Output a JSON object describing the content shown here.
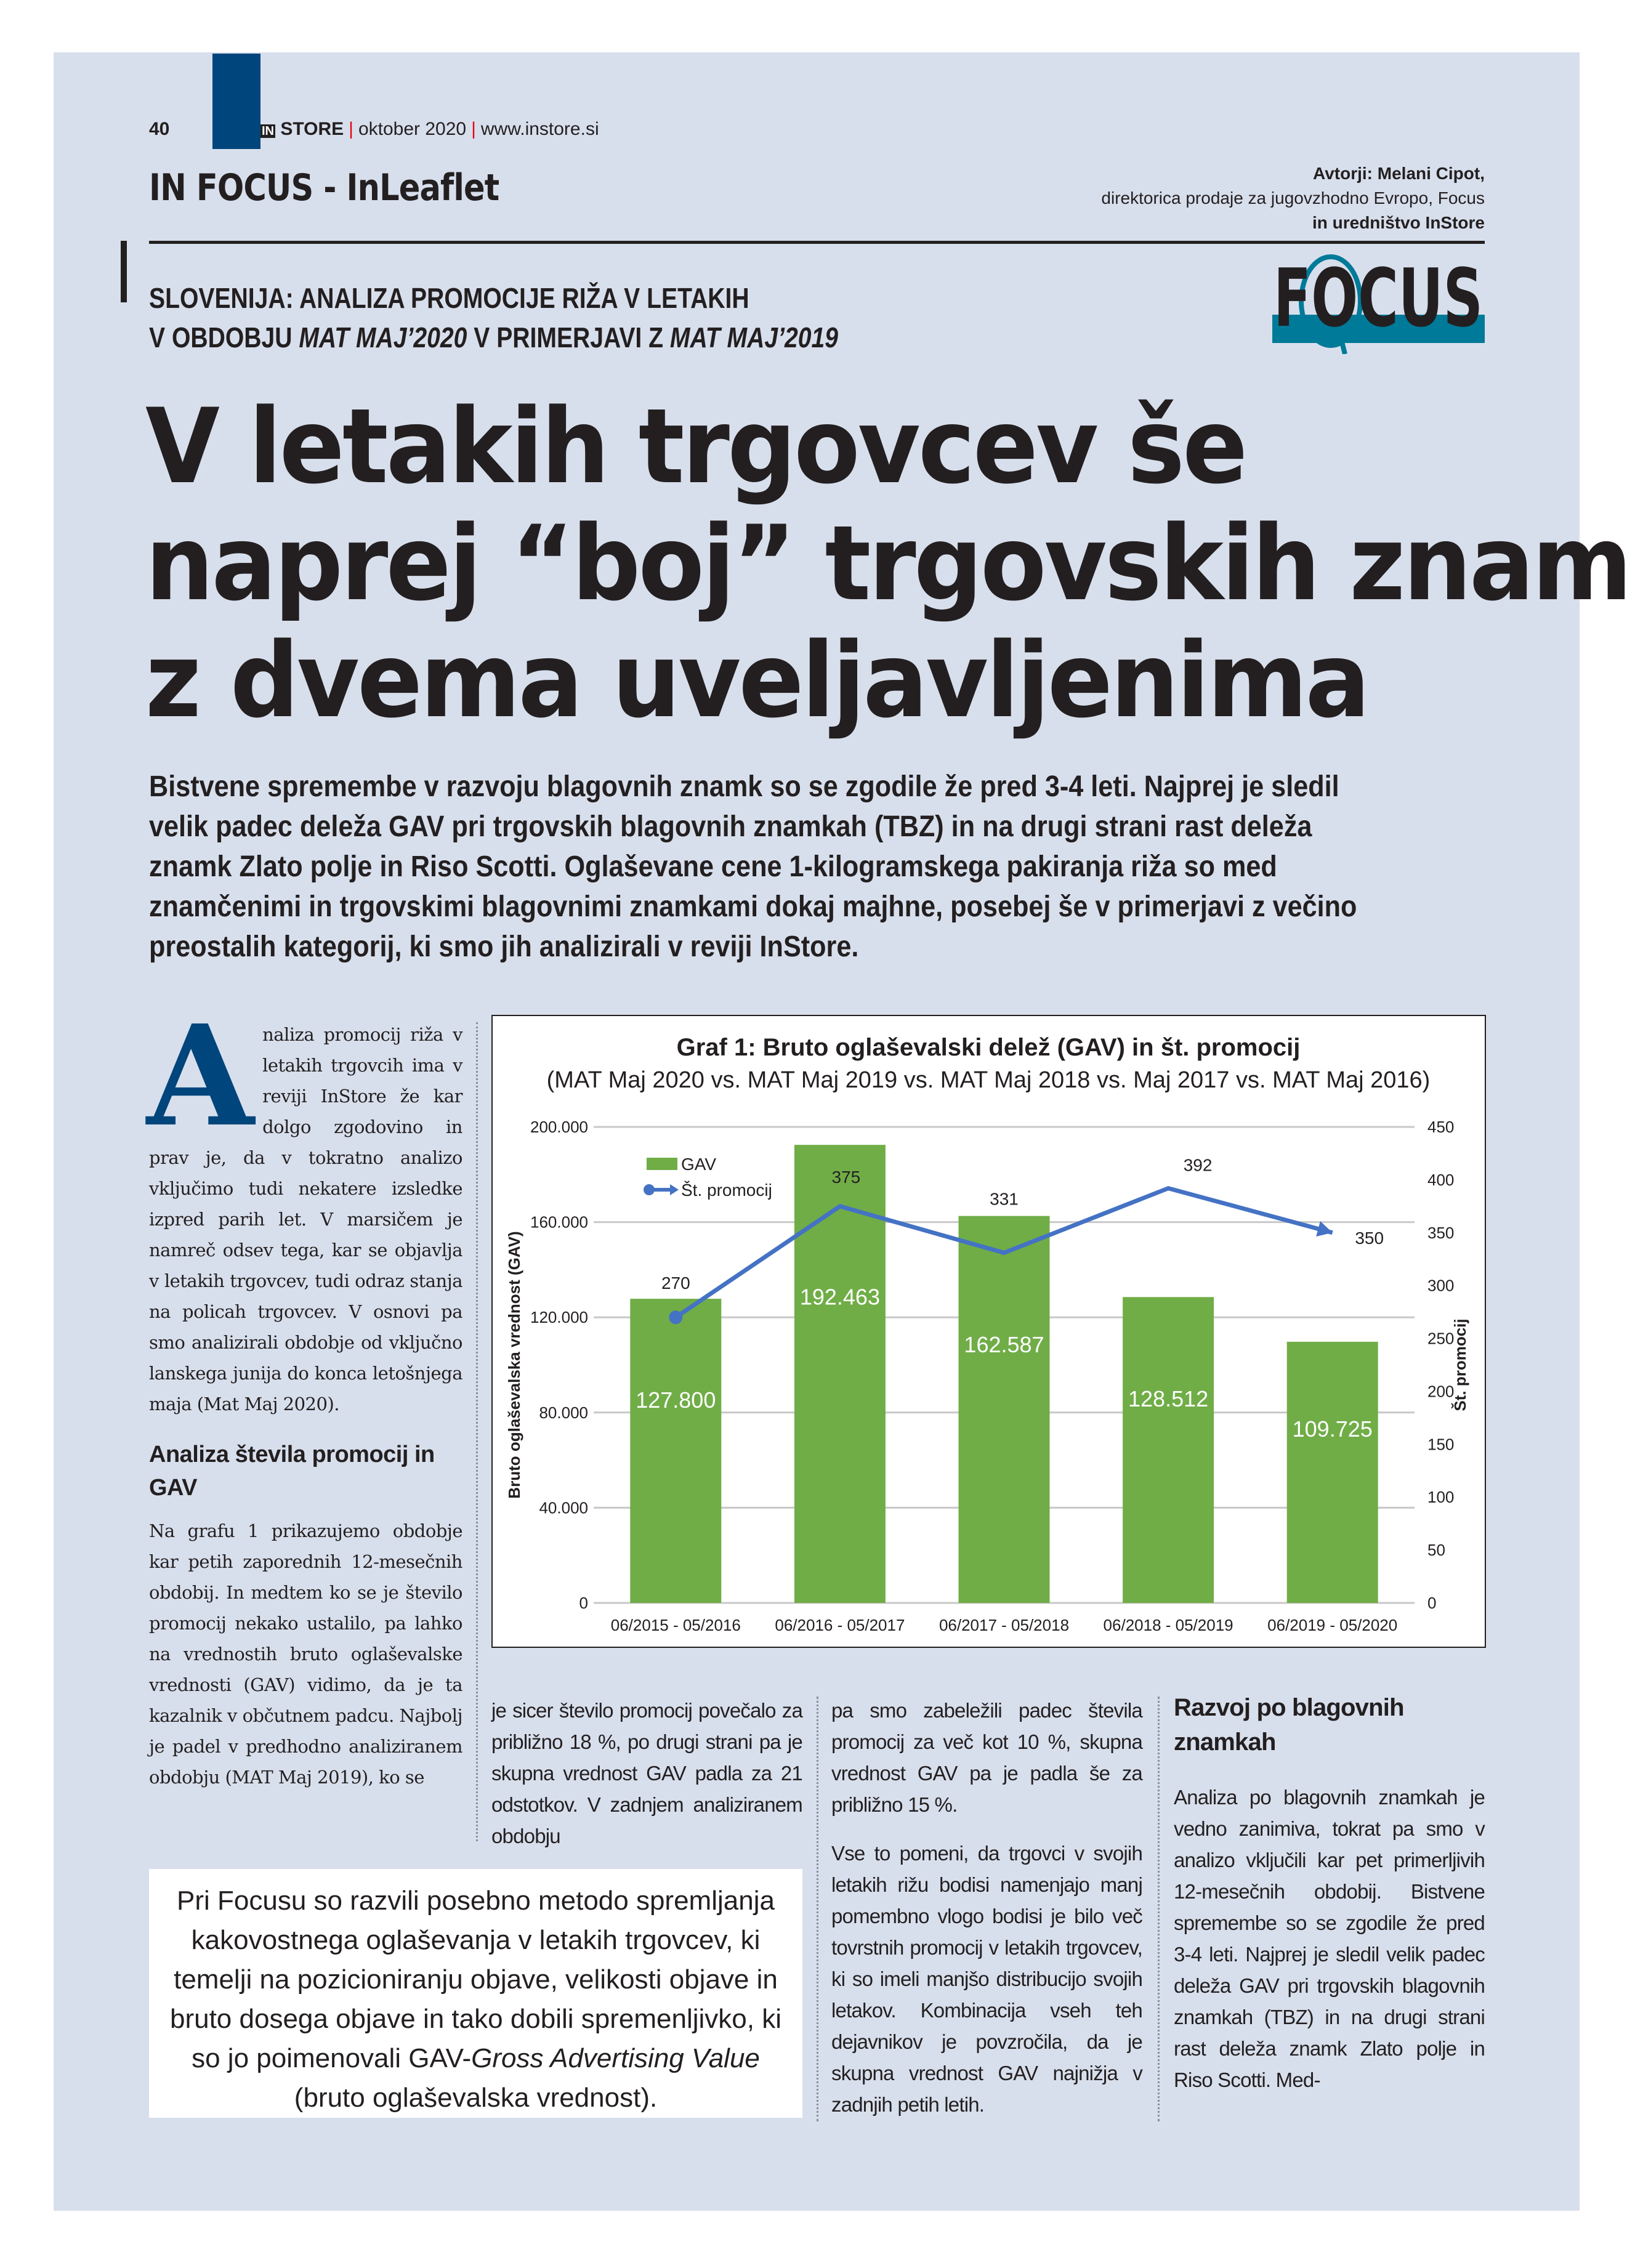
{
  "header": {
    "page_number": "40",
    "magazine_in": "IN",
    "magazine": "STORE",
    "issue": "oktober 2020",
    "website": "www.instore.si"
  },
  "section": "IN FOCUS - InLeaflet",
  "authors": {
    "line1": "Avtorji: Melani Cipot,",
    "line2": "direktorica prodaje za jugovzhodno Evropo, Focus",
    "line3": "in uredništvo InStore"
  },
  "logo": {
    "text": "FOCUS",
    "color": "#007a99"
  },
  "kicker": {
    "line1": "SLOVENIJA: ANALIZA PROMOCIJE RIŽA V LETAKIH",
    "line2_a": "V OBDOBJU ",
    "line2_b": "MAT MAJ’2020",
    "line2_c": " V PRIMERJAVI Z ",
    "line2_d": "MAT MAJ’2019"
  },
  "headline": {
    "line1": "V letakih trgovcev še",
    "line2": "naprej “boj” trgovskih znamk",
    "line3": "z dvema uveljavljenima"
  },
  "lead": "Bistvene spremembe v razvoju blagovnih znamk so se zgodile že pred 3-4 leti. Najprej je sledil velik padec deleža GAV pri trgovskih blagovnih znamkah (TBZ) in na drugi strani rast deleža znamk Zlato polje in Riso Scotti. Oglaševane cene 1-kilogramskega pakiranja riža so med znamčenimi in trgovskimi blagovnimi znamkami dokaj majhne, posebej še v primerjavi z večino preostalih kategorij, ki smo jih analizirali v reviji InStore.",
  "body": {
    "dropcap": "A",
    "intro": "naliza promocij riža v letakih trgovcih ima v reviji InStore že kar dolgo zgodovino in prav je, da v tokratno analizo vključimo tudi nekatere izsledke izpred parih let. V marsičem je namreč odsev tega, kar se objavlja v letakih trgovcev, tudi odraz stanja na policah trgovcev. V osnovi pa smo analizirali obdobje od vključno lanskega junija do konca letošnjega maja (Mat Maj 2020).",
    "heading1": "Analiza števila promocij in GAV",
    "p1": "Na grafu 1 prikazujemo obdobje kar petih zaporednih 12-mesečnih obdobij. In medtem ko se je število promocij nekako ustalilo, pa lahko na vrednostih bruto oglaševalske vrednosti (GAV) vidimo, da je ta kazalnik v občutnem padcu. Najbolj je padel v predhodno analiziranem obdobju (MAT Maj 2019), ko se",
    "p2": "je sicer število promocij povečalo za približno 18 %, po drugi strani pa je skupna vrednost GAV padla za 21 odstotkov. V zadnjem analiziranem obdobju",
    "p3": "pa smo zabeležili padec števila promocij za več kot 10 %, skupna vrednost GAV pa je padla še za približno 15 %.",
    "p4": "Vse to pomeni, da trgovci v svojih letakih rižu bodisi namenjajo manj pomembno vlogo bodisi je bilo več tovrstnih promocij v letakih trgovcev, ki so imeli manjšo distribucijo svojih letakov. Kombinacija vseh teh dejavnikov je povzročila, da je skupna vrednost GAV najnižja v zadnjih petih letih.",
    "heading2": "Razvoj po blagovnih znamkah",
    "p5": "Analiza po blagovnih znamkah je vedno zanimiva, tokrat pa smo v analizo vključili kar pet primerljivih 12-mesečnih obdobij. Bistvene spremembe so se zgodile že pred 3-4 leti. Najprej je sledil velik padec deleža GAV pri trgovskih blagovnih znamkah (TBZ) in na drugi strani rast deleža znamk Zlato polje in Riso Scotti. Med-"
  },
  "quote": {
    "a": "Pri Focusu so razvili posebno metodo spremljanja kakovostnega oglaševanja v letakih trgovcev, ki temelji na pozicioniranju objave, velikosti objave in bruto dosega objave in tako dobili spremenljivko, ki so jo poimenovali GAV-",
    "b": "Gross Advertising Value",
    "c": " (bruto oglaševalska vrednost)."
  },
  "chart_data": {
    "type": "bar",
    "title": "Graf 1: Bruto oglaševalski delež (GAV) in št. promocij",
    "subtitle": "(MAT Maj 2020 vs. MAT Maj 2019 vs. MAT Maj 2018 vs. Maj 2017 vs. MAT Maj 2016)",
    "categories": [
      "06/2015 - 05/2016",
      "06/2016 - 05/2017",
      "06/2017 - 05/2018",
      "06/2018 - 05/2019",
      "06/2019 - 05/2020"
    ],
    "series": [
      {
        "name": "GAV",
        "type": "bar",
        "axis": "left",
        "values": [
          127800,
          192463,
          162587,
          128512,
          109725
        ],
        "labels": [
          "127.800",
          "192.463",
          "162.587",
          "128.512",
          "109.725"
        ],
        "color": "#70ad47"
      },
      {
        "name": "Št. promocij",
        "type": "line",
        "axis": "right",
        "values": [
          270,
          375,
          331,
          392,
          350
        ],
        "labels": [
          "270",
          "375",
          "331",
          "392",
          "350"
        ],
        "color": "#4472c4"
      }
    ],
    "ylabel": "Bruto oglaševalska vrednost (GAV)",
    "y2label": "Št. promocij",
    "ylim": [
      0,
      200000
    ],
    "y2lim": [
      0,
      450
    ],
    "yticks": [
      "0",
      "40.000",
      "80.000",
      "120.000",
      "160.000",
      "200.000"
    ],
    "y2ticks": [
      "0",
      "50",
      "100",
      "150",
      "200",
      "250",
      "300",
      "350",
      "400",
      "450"
    ],
    "grid": true,
    "legend": "top-left"
  }
}
